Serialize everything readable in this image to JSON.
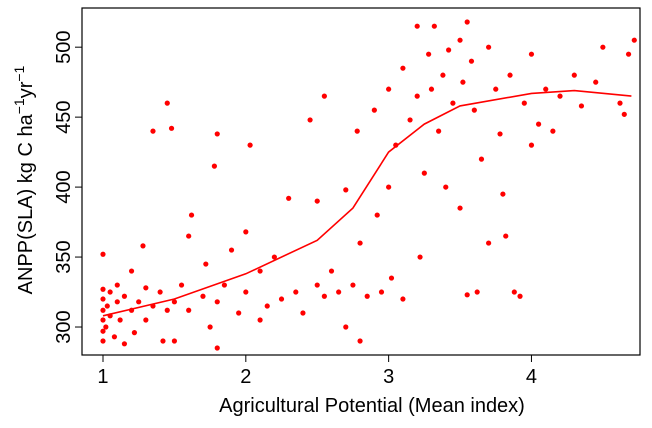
{
  "chart_data": {
    "type": "scatter",
    "xlabel": "Agricultural Potential (Mean index)",
    "ylabel": [
      "ANPP(SLA) kg C ha",
      "−1",
      "yr",
      "−1"
    ],
    "xlim": [
      0.853,
      4.76
    ],
    "ylim": [
      280,
      528
    ],
    "xticks": [
      1,
      2,
      3,
      4
    ],
    "yticks": [
      300,
      350,
      400,
      450,
      500
    ],
    "grid": false,
    "series": [
      {
        "mode": "markers",
        "color": "#ff0000",
        "x": [
          1,
          1,
          1,
          1,
          1,
          1,
          1,
          1.02,
          1.03,
          1.05,
          1.05,
          1.08,
          1.1,
          1.1,
          1.12,
          1.15,
          1.15,
          1.2,
          1.2,
          1.22,
          1.25,
          1.28,
          1.3,
          1.3,
          1.35,
          1.35,
          1.4,
          1.42,
          1.45,
          1.45,
          1.48,
          1.5,
          1.5,
          1.55,
          1.6,
          1.6,
          1.62,
          1.7,
          1.72,
          1.75,
          1.78,
          1.8,
          1.8,
          1.8,
          1.85,
          1.9,
          1.95,
          2.0,
          2.0,
          2.03,
          2.1,
          2.1,
          2.15,
          2.2,
          2.25,
          2.3,
          2.35,
          2.4,
          2.45,
          2.5,
          2.5,
          2.55,
          2.55,
          2.6,
          2.65,
          2.7,
          2.7,
          2.75,
          2.78,
          2.8,
          2.8,
          2.85,
          2.9,
          2.92,
          2.95,
          3.0,
          3.0,
          3.02,
          3.05,
          3.1,
          3.1,
          3.15,
          3.2,
          3.2,
          3.22,
          3.25,
          3.28,
          3.3,
          3.32,
          3.35,
          3.38,
          3.4,
          3.42,
          3.45,
          3.5,
          3.5,
          3.52,
          3.55,
          3.55,
          3.58,
          3.6,
          3.62,
          3.65,
          3.7,
          3.7,
          3.75,
          3.78,
          3.8,
          3.82,
          3.85,
          3.88,
          3.92,
          3.95,
          4.0,
          4.0,
          4.05,
          4.1,
          4.15,
          4.2,
          4.3,
          4.35,
          4.45,
          4.5,
          4.62,
          4.65,
          4.68,
          4.72
        ],
        "values": [
          290,
          297,
          305,
          312,
          320,
          327,
          352,
          300,
          315,
          308,
          325,
          293,
          318,
          330,
          305,
          288,
          322,
          312,
          340,
          296,
          318,
          358,
          305,
          328,
          315,
          440,
          325,
          290,
          312,
          460,
          442,
          318,
          290,
          330,
          312,
          365,
          380,
          322,
          345,
          300,
          415,
          285,
          318,
          438,
          330,
          355,
          310,
          325,
          368,
          430,
          340,
          305,
          315,
          350,
          320,
          392,
          325,
          310,
          448,
          330,
          390,
          322,
          465,
          340,
          325,
          398,
          300,
          330,
          440,
          290,
          360,
          322,
          455,
          380,
          325,
          400,
          470,
          335,
          430,
          485,
          320,
          448,
          515,
          465,
          350,
          410,
          495,
          470,
          515,
          440,
          480,
          400,
          498,
          460,
          505,
          385,
          475,
          518,
          323,
          490,
          455,
          325,
          420,
          500,
          360,
          470,
          438,
          395,
          365,
          480,
          325,
          322,
          460,
          495,
          430,
          445,
          470,
          440,
          465,
          480,
          458,
          475,
          500,
          460,
          452,
          495,
          505
        ]
      },
      {
        "mode": "line",
        "color": "#ff0000",
        "x": [
          1,
          1.5,
          2,
          2.5,
          2.75,
          3,
          3.25,
          3.5,
          4,
          4.3,
          4.7
        ],
        "values": [
          308,
          320,
          338,
          362,
          385,
          425,
          445,
          458,
          467,
          469,
          465
        ]
      }
    ]
  }
}
